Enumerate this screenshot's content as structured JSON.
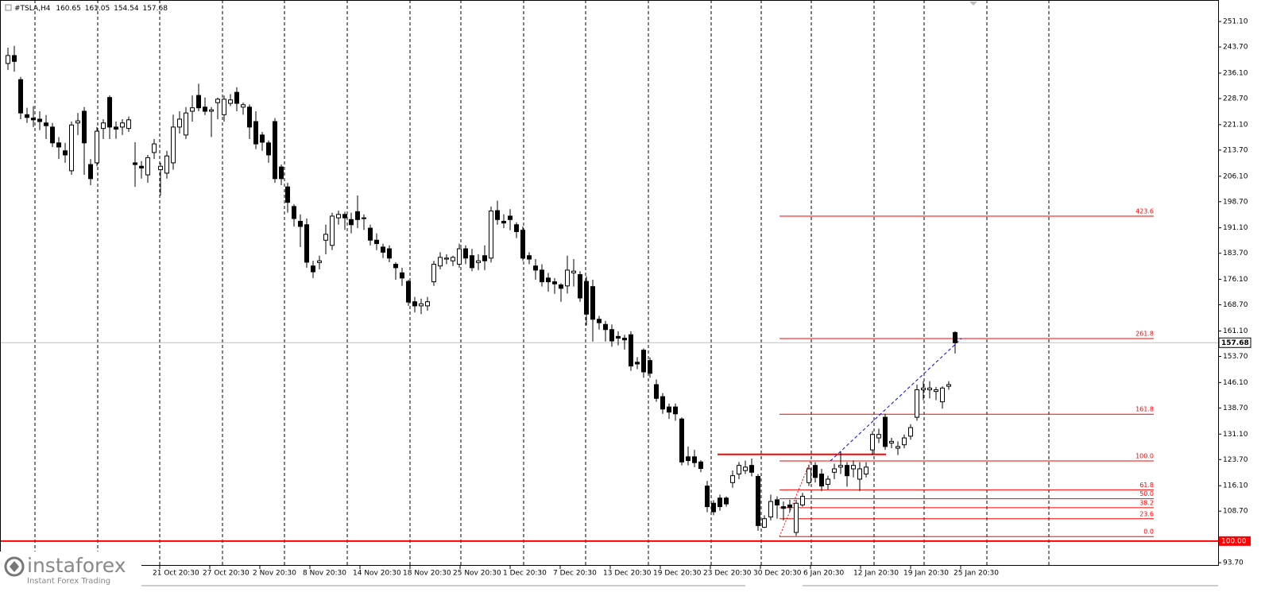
{
  "chart_data": {
    "type": "candlestick",
    "symbol": "#TSLA,H4",
    "ylim": [
      92.8,
      256.2
    ],
    "yticks": [
      {
        "value": 251.1,
        "label": "251.10"
      },
      {
        "value": 243.7,
        "label": "243.70"
      },
      {
        "value": 236.1,
        "label": "236.10"
      },
      {
        "value": 228.7,
        "label": "228.70"
      },
      {
        "value": 221.1,
        "label": "221.10"
      },
      {
        "value": 213.7,
        "label": "213.70"
      },
      {
        "value": 206.1,
        "label": "206.10"
      },
      {
        "value": 198.7,
        "label": "198.70"
      },
      {
        "value": 191.1,
        "label": "191.10"
      },
      {
        "value": 183.7,
        "label": "183.70"
      },
      {
        "value": 176.1,
        "label": "176.10"
      },
      {
        "value": 168.7,
        "label": "168.70"
      },
      {
        "value": 161.1,
        "label": "161.10"
      },
      {
        "value": 153.7,
        "label": "153.70"
      },
      {
        "value": 146.1,
        "label": "146.10"
      },
      {
        "value": 138.7,
        "label": "138.70"
      },
      {
        "value": 131.1,
        "label": "131.10"
      },
      {
        "value": 123.7,
        "label": "123.70"
      },
      {
        "value": 116.1,
        "label": "116.10"
      },
      {
        "value": 108.7,
        "label": "108.70"
      },
      {
        "value": 93.7,
        "label": "93.70"
      }
    ],
    "x_labels": [
      "21 Oct 20:30",
      "27 Oct 20:30",
      "2 Nov 20:30",
      "8 Nov 20:30",
      "14 Nov 20:30",
      "18 Nov 20:30",
      "25 Nov 20:30",
      "1 Dec 20:30",
      "7 Dec 20:30",
      "13 Dec 20:30",
      "19 Dec 20:30",
      "23 Dec 20:30",
      "30 Dec 20:30",
      "6 Jan 20:30",
      "12 Jan 20:30",
      "19 Jan 20:30",
      "25 Jan 20:30"
    ],
    "grid": true,
    "up_color": "#ffffff",
    "down_color": "#000000",
    "wick_color": "#000000",
    "open": [
      238.9,
      241.2,
      234.2,
      224.0,
      223.0,
      222.7,
      221.6,
      220.4,
      215.8,
      213.5,
      207.7,
      221.6,
      225.0,
      209.5,
      210.0,
      220.0,
      229.0,
      220.4,
      220.4,
      220.0,
      210.0,
      209.0,
      206.5,
      213.0,
      208.0,
      207.0,
      210.0,
      220.4,
      218.1,
      225.0,
      229.6,
      226.2,
      225.0,
      227.5,
      224.0,
      227.3,
      230.5,
      226.2,
      226.2,
      222.0,
      218.1,
      215.8,
      222.0,
      208.8,
      203.0,
      197.3,
      193.0,
      192.0,
      180.0,
      181.0,
      187.5,
      186.0,
      194.0,
      195.0,
      193.5,
      195.8,
      194.0,
      191.0,
      187.5,
      185.5,
      185.0,
      180.5,
      178.0,
      175.5,
      169.6,
      168.4,
      168.4,
      175.4,
      180.0,
      182.0,
      181.5,
      180.5,
      185.0,
      183.0,
      181.0,
      183.0,
      182.3,
      196.1,
      193.0,
      194.5,
      192.0,
      190.4,
      183.0,
      180.0,
      178.8,
      176.5,
      175.4,
      174.5,
      174.2,
      178.0,
      177.5,
      175.5,
      174.0,
      164.5,
      163.0,
      161.5,
      159.5,
      159.0,
      160.0,
      152.0,
      155.5,
      152.5,
      145.5,
      142.0,
      139.0,
      139.0,
      135.5,
      124.5,
      124.5,
      123.0,
      116.0,
      111.0,
      112.5,
      112.5,
      117.0,
      119.5,
      120.5,
      122.0,
      118.8,
      104.0,
      107.0,
      112.0,
      110.0,
      110.5,
      102.5,
      110.5,
      117.0,
      122.0,
      119.5,
      116.5,
      120.0,
      121.5,
      122.0,
      121.0,
      118.0,
      119.5,
      126.5,
      130.0,
      136.0,
      128.5,
      127.0,
      128.0,
      130.5,
      136.0,
      144.0,
      144.0,
      143.5,
      140.5,
      145.0,
      160.65
    ],
    "high": [
      243.5,
      244.0,
      235.0,
      226.0,
      226.5,
      225.0,
      223.9,
      221.6,
      217.5,
      215.8,
      222.0,
      224.5,
      226.2,
      211.1,
      220.4,
      222.7,
      229.6,
      222.0,
      222.7,
      223.5,
      216.0,
      210.5,
      212.3,
      216.9,
      210.0,
      213.5,
      224.0,
      225.0,
      226.2,
      229.6,
      233.0,
      229.0,
      226.2,
      229.0,
      229.6,
      230.0,
      232.0,
      227.5,
      227.0,
      225.0,
      219.0,
      216.5,
      223.0,
      209.5,
      204.2,
      198.0,
      195.0,
      193.8,
      181.5,
      183.0,
      192.0,
      195.5,
      196.1,
      195.8,
      195.5,
      200.5,
      195.0,
      192.0,
      189.5,
      186.5,
      186.0,
      181.1,
      179.5,
      176.0,
      171.0,
      170.5,
      171.0,
      181.5,
      184.0,
      183.4,
      183.0,
      186.5,
      186.0,
      185.0,
      183.4,
      186.0,
      197.3,
      199.0,
      195.0,
      196.5,
      192.7,
      191.5,
      184.0,
      182.0,
      180.5,
      178.0,
      176.5,
      175.0,
      183.0,
      182.0,
      178.5,
      177.0,
      176.0,
      165.5,
      164.0,
      163.0,
      161.0,
      160.0,
      161.0,
      153.5,
      156.0,
      153.4,
      147.0,
      143.0,
      140.0,
      140.0,
      136.0,
      127.5,
      126.5,
      123.5,
      117.5,
      111.9,
      113.5,
      113.0,
      120.5,
      123.0,
      123.4,
      124.0,
      119.5,
      107.5,
      113.5,
      113.0,
      111.5,
      112.0,
      112.0,
      114.0,
      122.0,
      123.0,
      121.0,
      119.0,
      122.5,
      126.0,
      123.0,
      123.4,
      123.0,
      123.0,
      132.0,
      132.7,
      137.0,
      130.0,
      129.0,
      131.0,
      134.0,
      145.5,
      146.5,
      146.5,
      144.8,
      145.0,
      146.5,
      161.05
    ],
    "low": [
      237.0,
      236.5,
      222.7,
      221.6,
      220.4,
      219.5,
      216.9,
      214.6,
      211.1,
      210.0,
      206.5,
      218.1,
      206.5,
      203.5,
      209.0,
      216.9,
      216.9,
      217.0,
      218.1,
      219.0,
      203.0,
      205.4,
      204.2,
      211.1,
      200.5,
      205.4,
      208.0,
      218.5,
      216.9,
      222.0,
      225.0,
      223.9,
      217.5,
      222.7,
      222.0,
      226.5,
      225.0,
      224.0,
      216.9,
      214.0,
      213.5,
      210.0,
      204.2,
      203.5,
      195.5,
      191.5,
      185.5,
      179.5,
      176.5,
      179.0,
      183.4,
      184.6,
      192.0,
      190.5,
      189.5,
      191.0,
      190.5,
      186.0,
      184.6,
      182.3,
      181.1,
      176.0,
      174.2,
      168.4,
      166.5,
      166.0,
      167.0,
      174.2,
      179.0,
      180.5,
      180.0,
      179.5,
      180.5,
      178.5,
      178.8,
      178.8,
      181.0,
      192.0,
      191.0,
      190.4,
      188.1,
      181.5,
      180.5,
      176.0,
      174.0,
      172.5,
      171.9,
      169.6,
      172.0,
      174.0,
      169.6,
      162.7,
      158.0,
      161.5,
      158.0,
      156.5,
      156.9,
      155.7,
      149.5,
      150.0,
      147.5,
      147.5,
      140.5,
      137.0,
      135.5,
      135.0,
      122.0,
      122.0,
      121.5,
      120.0,
      108.4,
      107.5,
      108.8,
      110.0,
      115.5,
      118.0,
      119.5,
      118.8,
      103.0,
      103.8,
      106.0,
      106.5,
      106.0,
      108.5,
      101.5,
      110.0,
      116.0,
      117.0,
      114.5,
      115.0,
      118.0,
      119.5,
      115.8,
      118.5,
      114.5,
      118.5,
      125.0,
      128.5,
      126.5,
      127.0,
      125.0,
      127.0,
      129.5,
      135.0,
      141.0,
      141.5,
      141.0,
      138.5,
      144.0,
      154.54
    ],
    "close": [
      241.2,
      239.5,
      224.5,
      223.2,
      222.5,
      222.0,
      220.8,
      215.8,
      214.6,
      212.3,
      221.0,
      222.2,
      215.8,
      205.4,
      219.2,
      221.6,
      220.4,
      219.8,
      221.6,
      222.5,
      209.5,
      208.5,
      211.5,
      215.5,
      209.0,
      212.0,
      220.4,
      222.7,
      224.5,
      226.0,
      226.0,
      225.0,
      225.4,
      228.5,
      228.5,
      228.3,
      227.3,
      226.9,
      220.4,
      215.5,
      216.0,
      212.3,
      205.4,
      205.4,
      198.5,
      193.8,
      191.5,
      181.1,
      178.3,
      181.5,
      189.2,
      194.5,
      195.0,
      194.0,
      192.0,
      193.5,
      193.8,
      187.5,
      186.5,
      184.0,
      182.3,
      179.5,
      176.5,
      169.5,
      168.4,
      169.0,
      169.6,
      180.5,
      182.5,
      182.3,
      182.5,
      185.0,
      182.3,
      179.5,
      181.5,
      181.5,
      196.0,
      193.5,
      192.5,
      193.5,
      190.0,
      182.3,
      182.0,
      178.8,
      175.4,
      175.4,
      174.8,
      173.5,
      178.8,
      178.5,
      170.7,
      166.0,
      164.5,
      163.5,
      161.5,
      158.2,
      159.0,
      158.5,
      150.9,
      151.5,
      149.2,
      148.8,
      141.5,
      138.4,
      137.5,
      137.0,
      123.0,
      123.4,
      122.8,
      121.1,
      110.0,
      108.5,
      110.0,
      110.8,
      119.0,
      122.0,
      121.5,
      120.0,
      104.5,
      106.5,
      111.5,
      110.5,
      109.5,
      109.8,
      111.0,
      113.0,
      121.0,
      118.5,
      116.0,
      118.0,
      121.0,
      122.0,
      119.0,
      122.0,
      121.0,
      121.5,
      131.0,
      131.0,
      127.5,
      129.0,
      127.5,
      130.0,
      133.0,
      144.0,
      144.5,
      144.5,
      144.0,
      144.5,
      145.5,
      157.68
    ],
    "price_line_color": "#c0c0c0",
    "hline": {
      "value": 100,
      "label": "100.00",
      "color": "#ff0000"
    },
    "resistance_line": 125.2,
    "fib": {
      "low": 101.3,
      "high": 123.3,
      "color": "#ff0000",
      "levels": [
        {
          "value": 0,
          "label": "0.0"
        },
        {
          "value": 23.6,
          "label": "23.6"
        },
        {
          "value": 38.2,
          "label": "38.2"
        },
        {
          "value": 50,
          "label": "50.0"
        },
        {
          "value": 61.8,
          "label": "61.8"
        },
        {
          "value": 100,
          "label": "100.0"
        },
        {
          "value": 161.8,
          "label": "161.8"
        },
        {
          "value": 261.8,
          "label": "261.8"
        },
        {
          "value": 423.6,
          "label": "423.6"
        }
      ]
    }
  },
  "logo": {
    "name": "instaforex",
    "tagline": "Instant Forex Trading"
  }
}
